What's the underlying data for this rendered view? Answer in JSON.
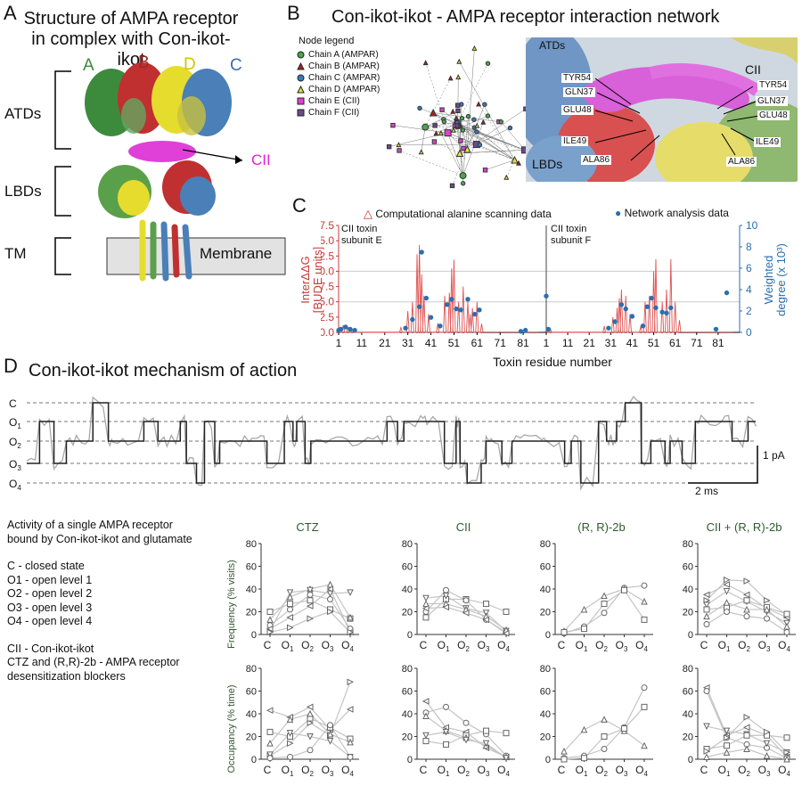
{
  "panel_a": {
    "letter": "A",
    "title_line1": "Structure of AMPA receptor",
    "title_line2": "in complex with Con-ikot-ikot",
    "chain_letters": [
      "A",
      "B",
      "D",
      "C"
    ],
    "regions": [
      "ATDs",
      "LBDs",
      "TM"
    ],
    "membrane_label": "Membrane",
    "cii_label": "CII"
  },
  "panel_b": {
    "letter": "B",
    "title": "Con-ikot-ikot - AMPA receptor interaction network",
    "legend_title": "Node legend",
    "legend": [
      {
        "label": "Chain A (AMPAR)",
        "marker": "circle",
        "color": "#4aa64a"
      },
      {
        "label": "Chain B (AMPAR)",
        "marker": "triangle",
        "color": "#b02020"
      },
      {
        "label": "Chain C (AMPAR)",
        "marker": "circle",
        "color": "#3a7ab8"
      },
      {
        "label": "Chain D (AMPAR)",
        "marker": "triangle",
        "color": "#e6e040"
      },
      {
        "label": "Chain E (CII)",
        "marker": "square",
        "color": "#e040d0"
      },
      {
        "label": "Chain F (CII)",
        "marker": "square",
        "color": "#6a4a8a"
      }
    ],
    "struct_labels": {
      "atds": "ATDs",
      "cii": "CII",
      "lbds": "LBDs"
    },
    "residues_left": [
      "TYR54",
      "GLN37",
      "GLU48",
      "ILE49",
      "ALA86"
    ],
    "residues_right": [
      "TYR54",
      "GLN37",
      "GLU48",
      "ILE49",
      "ALA86"
    ]
  },
  "panel_c": {
    "letter": "C",
    "legend_comp": "Computational alanine scanning data",
    "legend_net": "Network analysis data",
    "subunit_e_line1": "CII toxin",
    "subunit_e_line2": "subunit E",
    "subunit_f_line1": "CII toxin",
    "subunit_f_line2": "subunit F",
    "ylabel_left_line1": "InterΔΔG",
    "ylabel_left_line2": "[BUDE units]",
    "ylabel_right_line1": "Weighted",
    "ylabel_right_line2": "degree (x 10³)",
    "xlabel": "Toxin residue number",
    "left_ticks": [
      "0.0",
      "2.5",
      "5.0",
      "7.5",
      "10.0",
      "12.5",
      "15.0",
      "17.5"
    ],
    "right_ticks": [
      "0",
      "2",
      "4",
      "6",
      "8",
      "10"
    ],
    "x_ticks": [
      "1",
      "11",
      "21",
      "31",
      "41",
      "51",
      "61",
      "71",
      "81",
      "1",
      "11",
      "21",
      "31",
      "41",
      "51",
      "61",
      "71",
      "81"
    ]
  },
  "panel_d": {
    "letter": "D",
    "title": "Con-ikot-ikot mechanism of action",
    "state_labels": [
      "C",
      "O1",
      "O2",
      "O3",
      "O4"
    ],
    "scale_current": "1 pA",
    "scale_time": "2 ms",
    "desc": [
      "Activity of a single AMPA receptor",
      "bound by Con-ikot-ikot and glutamate",
      "",
      "C - closed state",
      "O1 - open level 1",
      "O2 - open level 2",
      "O3 - open level 3",
      "O4 - open level 4",
      "",
      "CII - Con-ikot-ikot",
      "CTZ and (R,R)-2b - AMPA receptor",
      "desensitization blockers"
    ],
    "conditions": [
      "CTZ",
      "CII",
      "(R, R)-2b",
      "CII + (R, R)-2b"
    ],
    "ylabel_freq": "Frequency (% visits)",
    "ylabel_occ": "Occupancy (% time)",
    "y_ticks": [
      "0",
      "20",
      "40",
      "60",
      "80"
    ],
    "x_states": [
      "C",
      "O",
      "O",
      "O",
      "O"
    ],
    "x_subs": [
      "",
      "1",
      "2",
      "3",
      "4"
    ]
  },
  "chart_data": [
    {
      "type": "line",
      "title": "",
      "xlabel": "Toxin residue number",
      "ylabel": "InterΔΔG [BUDE units]",
      "ylim": [
        0,
        17.5
      ],
      "y2label": "Weighted degree (x 10³)",
      "y2lim": [
        0,
        10
      ],
      "series": [
        {
          "name": "Computational alanine scanning data",
          "subunit": "E",
          "x": [
            1,
            3,
            5,
            7,
            28,
            31,
            33,
            35,
            36,
            37,
            38,
            40,
            44,
            47,
            49,
            50,
            51,
            53,
            55,
            57,
            58,
            59,
            61,
            63
          ],
          "y": [
            0.3,
            1.2,
            0.8,
            0.4,
            0.8,
            3.5,
            5,
            12.8,
            14.3,
            9.5,
            6,
            3,
            1.5,
            6,
            6.5,
            10.5,
            11.9,
            5,
            7.5,
            5,
            3,
            4,
            5,
            1.4
          ]
        },
        {
          "name": "Network analysis data",
          "subunit": "E",
          "x": [
            1,
            2,
            4,
            6,
            8,
            30,
            33,
            36,
            37,
            39,
            41,
            45,
            48,
            50,
            52,
            54,
            57,
            60,
            62,
            80,
            82
          ],
          "y": [
            0.2,
            0.3,
            0.5,
            0.3,
            0.2,
            0.4,
            1.2,
            2.4,
            7.5,
            3.2,
            1.4,
            0.6,
            2.6,
            3.1,
            2.2,
            2.1,
            3.1,
            1.7,
            2.1,
            0.1,
            0.2
          ]
        },
        {
          "name": "Computational alanine scanning data",
          "subunit": "F",
          "x": [
            1,
            3,
            28,
            32,
            34,
            35,
            36,
            38,
            40,
            45,
            47,
            49,
            51,
            52,
            55,
            57,
            59,
            61,
            63
          ],
          "y": [
            0.3,
            0.5,
            1,
            2.5,
            4,
            5.6,
            7,
            6,
            3,
            1,
            5,
            6,
            10,
            12,
            5,
            7,
            12,
            5,
            2
          ]
        },
        {
          "name": "Network analysis data",
          "subunit": "F",
          "x": [
            1,
            2,
            30,
            33,
            36,
            38,
            41,
            46,
            48,
            50,
            52,
            55,
            57,
            59,
            80,
            85
          ],
          "y": [
            3.4,
            0.3,
            0.4,
            1,
            2.6,
            2.2,
            1.5,
            0.6,
            2.4,
            3.2,
            2.3,
            1.9,
            1.8,
            2.3,
            0.3,
            3.7
          ]
        }
      ]
    },
    {
      "type": "line",
      "title": "CTZ",
      "ylabel": "Frequency (% visits)",
      "ylim": [
        0,
        80
      ],
      "categories": [
        "C",
        "O1",
        "O2",
        "O3",
        "O4"
      ],
      "series": [
        {
          "marker": "square",
          "values": [
            20,
            27,
            30,
            22,
            14
          ]
        },
        {
          "marker": "triangle-up",
          "values": [
            13,
            33,
            40,
            44,
            15
          ]
        },
        {
          "marker": "triangle-down",
          "values": [
            3,
            37,
            39,
            36,
            37
          ]
        },
        {
          "marker": "circle",
          "values": [
            8,
            22,
            35,
            31,
            5
          ]
        },
        {
          "marker": "triangle-left",
          "values": [
            5,
            15,
            25,
            40,
            2
          ]
        },
        {
          "marker": "triangle-right",
          "values": [
            2,
            6,
            14,
            20,
            2
          ]
        }
      ]
    },
    {
      "type": "line",
      "title": "CII",
      "ylabel": "Frequency (% visits)",
      "ylim": [
        0,
        80
      ],
      "categories": [
        "C",
        "O1",
        "O2",
        "O3",
        "O4"
      ],
      "series": [
        {
          "marker": "square",
          "values": [
            15,
            31,
            31,
            27,
            20
          ]
        },
        {
          "marker": "triangle-down",
          "values": [
            32,
            34,
            23,
            19,
            3
          ]
        },
        {
          "marker": "circle",
          "values": [
            20,
            39,
            30,
            13,
            2
          ]
        },
        {
          "marker": "triangle-up",
          "values": [
            27,
            27,
            22,
            16,
            4
          ]
        },
        {
          "marker": "triangle-left",
          "values": [
            23,
            24,
            19,
            13,
            1
          ]
        }
      ]
    },
    {
      "type": "line",
      "title": "(R, R)-2b",
      "ylabel": "Frequency (% visits)",
      "ylim": [
        0,
        80
      ],
      "categories": [
        "C",
        "O1",
        "O2",
        "O3",
        "O4"
      ],
      "series": [
        {
          "marker": "circle",
          "values": [
            1,
            7,
            19,
            41,
            43
          ]
        },
        {
          "marker": "triangle-up",
          "values": [
            3,
            22,
            34,
            40,
            29
          ]
        },
        {
          "marker": "square",
          "values": [
            2,
            5,
            27,
            39,
            13
          ]
        }
      ]
    },
    {
      "type": "line",
      "title": "CII + (R, R)-2b",
      "ylabel": "Frequency (% visits)",
      "ylim": [
        0,
        80
      ],
      "categories": [
        "C",
        "O1",
        "O2",
        "O3",
        "O4"
      ],
      "series": [
        {
          "marker": "triangle-left",
          "values": [
            35,
            44,
            35,
            23,
            15
          ]
        },
        {
          "marker": "triangle-right",
          "values": [
            30,
            48,
            47,
            30,
            17
          ]
        },
        {
          "marker": "triangle-down",
          "values": [
            26,
            38,
            29,
            20,
            10
          ]
        },
        {
          "marker": "square",
          "values": [
            22,
            24,
            30,
            24,
            18
          ]
        },
        {
          "marker": "triangle-up",
          "values": [
            16,
            28,
            22,
            22,
            7
          ]
        },
        {
          "marker": "circle",
          "values": [
            9,
            20,
            16,
            14,
            2
          ]
        }
      ]
    },
    {
      "type": "line",
      "title": "CTZ",
      "ylabel": "Occupancy (% time)",
      "ylim": [
        0,
        80
      ],
      "categories": [
        "C",
        "O1",
        "O2",
        "O3",
        "O4"
      ],
      "series": [
        {
          "marker": "triangle-right",
          "values": [
            3,
            14,
            32,
            21,
            68
          ]
        },
        {
          "marker": "triangle-left",
          "values": [
            43,
            37,
            46,
            26,
            44
          ]
        },
        {
          "marker": "square",
          "values": [
            24,
            20,
            36,
            28,
            18
          ]
        },
        {
          "marker": "triangle-up",
          "values": [
            14,
            35,
            40,
            22,
            15
          ]
        },
        {
          "marker": "triangle-down",
          "values": [
            4,
            23,
            20,
            16,
            2
          ]
        },
        {
          "marker": "circle",
          "values": [
            1,
            2,
            8,
            30,
            2
          ]
        }
      ]
    },
    {
      "type": "line",
      "title": "CII",
      "ylabel": "Occupancy (% time)",
      "ylim": [
        0,
        80
      ],
      "categories": [
        "C",
        "O1",
        "O2",
        "O3",
        "O4"
      ],
      "series": [
        {
          "marker": "triangle-left",
          "values": [
            51,
            28,
            24,
            10,
            2
          ]
        },
        {
          "marker": "circle",
          "values": [
            41,
            46,
            32,
            22,
            3
          ]
        },
        {
          "marker": "square",
          "values": [
            16,
            13,
            21,
            25,
            23
          ]
        },
        {
          "marker": "triangle-up",
          "values": [
            38,
            25,
            19,
            12,
            2
          ]
        },
        {
          "marker": "triangle-down",
          "values": [
            21,
            24,
            17,
            14,
            1
          ]
        }
      ]
    },
    {
      "type": "line",
      "title": "(R, R)-2b",
      "ylabel": "Occupancy (% time)",
      "ylim": [
        0,
        80
      ],
      "categories": [
        "C",
        "O1",
        "O2",
        "O3",
        "O4"
      ],
      "series": [
        {
          "marker": "circle",
          "values": [
            1,
            3,
            9,
            28,
            63
          ]
        },
        {
          "marker": "triangle-up",
          "values": [
            7,
            26,
            35,
            25,
            12
          ]
        },
        {
          "marker": "square",
          "values": [
            0,
            1,
            20,
            27,
            46
          ]
        }
      ]
    },
    {
      "type": "line",
      "title": "CII + (R, R)-2b",
      "ylabel": "Occupancy (% time)",
      "ylim": [
        0,
        80
      ],
      "categories": [
        "C",
        "O1",
        "O2",
        "O3",
        "O4"
      ],
      "series": [
        {
          "marker": "triangle-left",
          "values": [
            63,
            21,
            28,
            21,
            2
          ]
        },
        {
          "marker": "circle",
          "values": [
            60,
            19,
            13,
            10,
            1
          ]
        },
        {
          "marker": "triangle-down",
          "values": [
            29,
            25,
            22,
            14,
            6
          ]
        },
        {
          "marker": "square",
          "values": [
            9,
            12,
            21,
            21,
            19
          ]
        },
        {
          "marker": "triangle-right",
          "values": [
            7,
            19,
            37,
            24,
            6
          ]
        },
        {
          "marker": "triangle-up",
          "values": [
            2,
            6,
            9,
            3,
            0
          ]
        }
      ]
    }
  ]
}
